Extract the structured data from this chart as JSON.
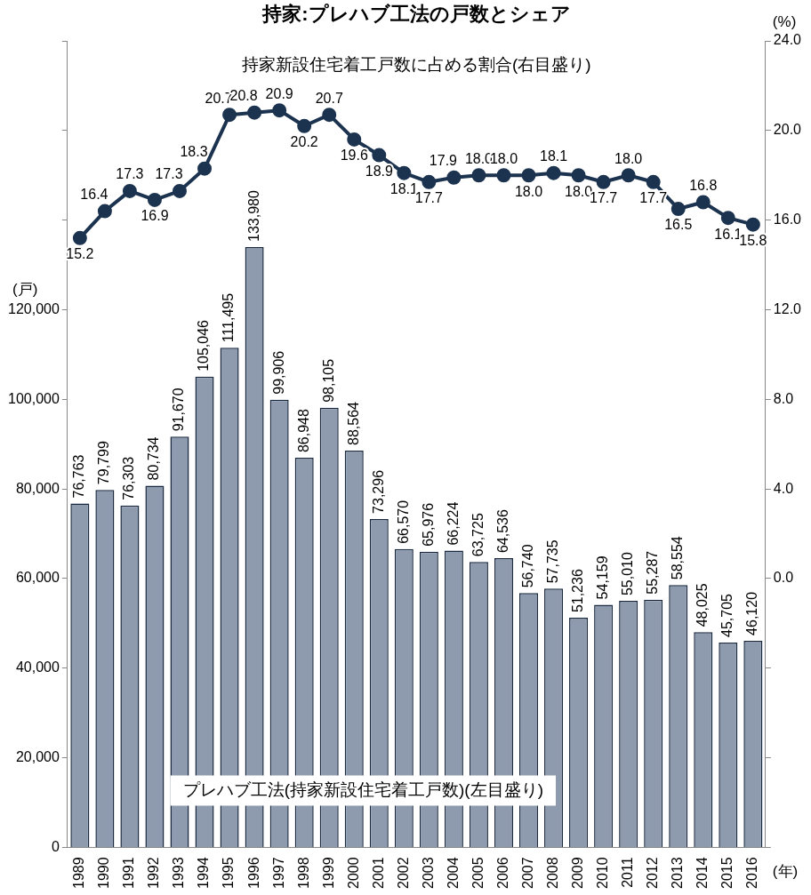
{
  "chart_data": {
    "type": "bar",
    "title": "持家:プレハブ工法の戸数とシェア",
    "ylabel": "(戸)",
    "y2label": "(%)",
    "xlabel": "(年)",
    "annotations": [
      "持家新設住宅着工戸数に占める割合(右目盛り)",
      "プレハブ工法(持家新設住宅着工戸数)(左目盛り)"
    ],
    "categories": [
      "1989",
      "1990",
      "1991",
      "1992",
      "1993",
      "1994",
      "1995",
      "1996",
      "1997",
      "1998",
      "1999",
      "2000",
      "2001",
      "2002",
      "2003",
      "2004",
      "2005",
      "2006",
      "2007",
      "2008",
      "2009",
      "2010",
      "2011",
      "2012",
      "2013",
      "2014",
      "2015",
      "2016"
    ],
    "series": [
      {
        "color": "#8e9aae",
        "values": [
          76763,
          79799,
          76303,
          80734,
          91670,
          105046,
          111495,
          133980,
          99906,
          86948,
          98105,
          88564,
          73296,
          66570,
          65976,
          66224,
          63725,
          64536,
          56740,
          57735,
          51236,
          54159,
          55010,
          55287,
          58554,
          48025,
          45705,
          46120
        ],
        "value_labels": [
          "76,763",
          "79,799",
          "76,303",
          "80,734",
          "91,670",
          "105,046",
          "111,495",
          "133,980",
          "99,906",
          "86,948",
          "98,105",
          "88,564",
          "73,296",
          "66,570",
          "65,976",
          "66,224",
          "63,725",
          "64,536",
          "56,740",
          "57,735",
          "51,236",
          "54,159",
          "55,010",
          "55,287",
          "58,554",
          "48,025",
          "45,705",
          "46,120"
        ]
      },
      {
        "type": "line",
        "axis": "y2",
        "color": "#1c3350",
        "marker": "circle",
        "line_style": "solid",
        "values": [
          15.2,
          16.4,
          17.3,
          16.9,
          17.3,
          18.3,
          20.7,
          20.8,
          20.9,
          20.2,
          20.7,
          19.6,
          18.9,
          18.1,
          17.7,
          17.9,
          18.0,
          18.0,
          18.0,
          18.1,
          18.0,
          17.7,
          18.0,
          17.7,
          16.5,
          16.8,
          16.1,
          15.8
        ],
        "value_labels": [
          "15.2",
          "16.4",
          "17.3",
          "16.9",
          "17.3",
          "18.3",
          "20.7",
          "20.8",
          "20.9",
          "20.2",
          "20.7",
          "19.6",
          "18.9",
          "18.1",
          "17.7",
          "17.9",
          "18.0",
          "18.0",
          "18.0",
          "18.1",
          "18.0",
          "17.7",
          "18.0",
          "17.7",
          "16.5",
          "16.8",
          "16.1",
          "15.8"
        ]
      }
    ],
    "ylim": [
      0,
      180000
    ],
    "yticks": [
      {
        "value": 0,
        "label": "0"
      },
      {
        "value": 20000,
        "label": "20,000"
      },
      {
        "value": 40000,
        "label": "40,000"
      },
      {
        "value": 60000,
        "label": "60,000"
      },
      {
        "value": 80000,
        "label": "80,000"
      },
      {
        "value": 100000,
        "label": "100,000"
      },
      {
        "value": 120000,
        "label": "120,000"
      },
      {
        "value": 140000,
        "label": null
      },
      {
        "value": 160000,
        "label": null
      },
      {
        "value": 180000,
        "label": null
      }
    ],
    "y2lim": [
      -12,
      24
    ],
    "y2ticks": [
      {
        "value": -12,
        "label": null
      },
      {
        "value": -8,
        "label": null
      },
      {
        "value": -4,
        "label": null
      },
      {
        "value": 0,
        "label": "0.0"
      },
      {
        "value": 4,
        "label": "4.0"
      },
      {
        "value": 8,
        "label": "8.0"
      },
      {
        "value": 12,
        "label": "12.0"
      },
      {
        "value": 16,
        "label": "16.0"
      },
      {
        "value": 20,
        "label": "20.0"
      },
      {
        "value": 24,
        "label": "24.0"
      }
    ],
    "grid": false,
    "legend": false
  }
}
